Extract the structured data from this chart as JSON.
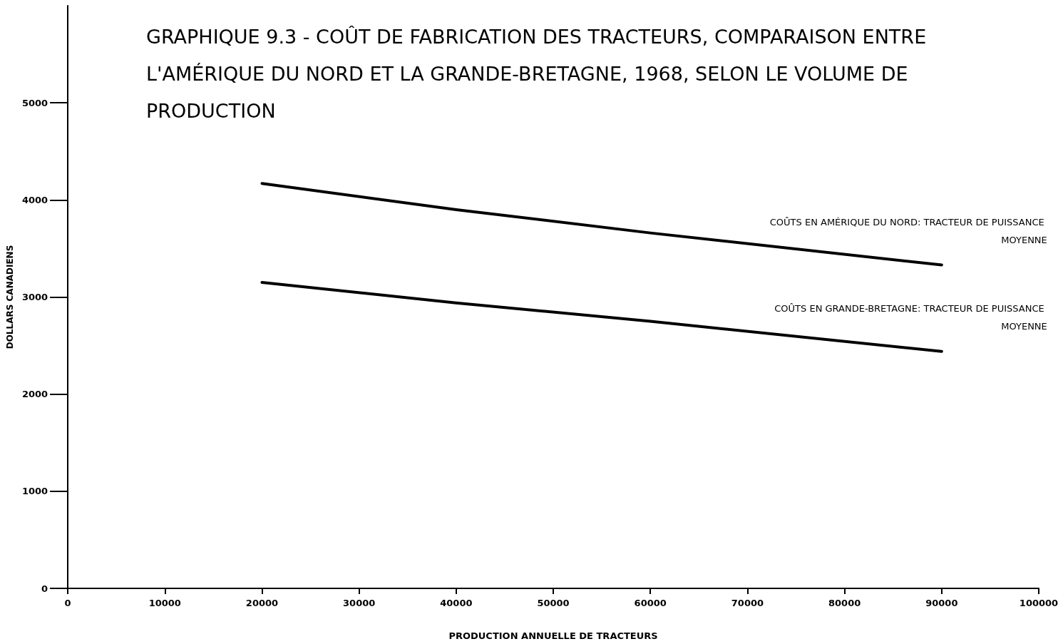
{
  "chart_data": {
    "type": "line",
    "title": "GRAPHIQUE 9.3 - COÛT DE FABRICATION DES TRACTEURS, COMPARAISON ENTRE L'AMÉRIQUE DU NORD ET LA GRANDE-BRETAGNE, 1968, SELON LE VOLUME DE PRODUCTION",
    "xlabel": "PRODUCTION ANNUELLE DE TRACTEURS",
    "ylabel": "DOLLARS CANADIENS",
    "x": [
      20000,
      40000,
      60000,
      90000
    ],
    "series": [
      {
        "name": "COÛTS EN AMÉRIQUE DU NORD: TRACTEUR DE PUISSANCE MOYENNE",
        "color": "#000000",
        "values": [
          4170,
          3900,
          3660,
          3330
        ]
      },
      {
        "name": "COÛTS EN GRANDE-BRETAGNE: TRACTEUR DE PUISSANCE MOYENNE",
        "color": "#000000",
        "values": [
          3150,
          2940,
          2750,
          2440
        ]
      }
    ],
    "xlim": [
      0,
      100000
    ],
    "xticks": [
      0,
      10000,
      20000,
      30000,
      40000,
      50000,
      60000,
      70000,
      80000,
      90000,
      100000
    ],
    "ylim": [
      0,
      6000
    ],
    "yticks": [
      0,
      1000,
      2000,
      3000,
      4000,
      5000
    ],
    "grid": false,
    "legend": false,
    "marker": "none",
    "line_style": "solid"
  }
}
